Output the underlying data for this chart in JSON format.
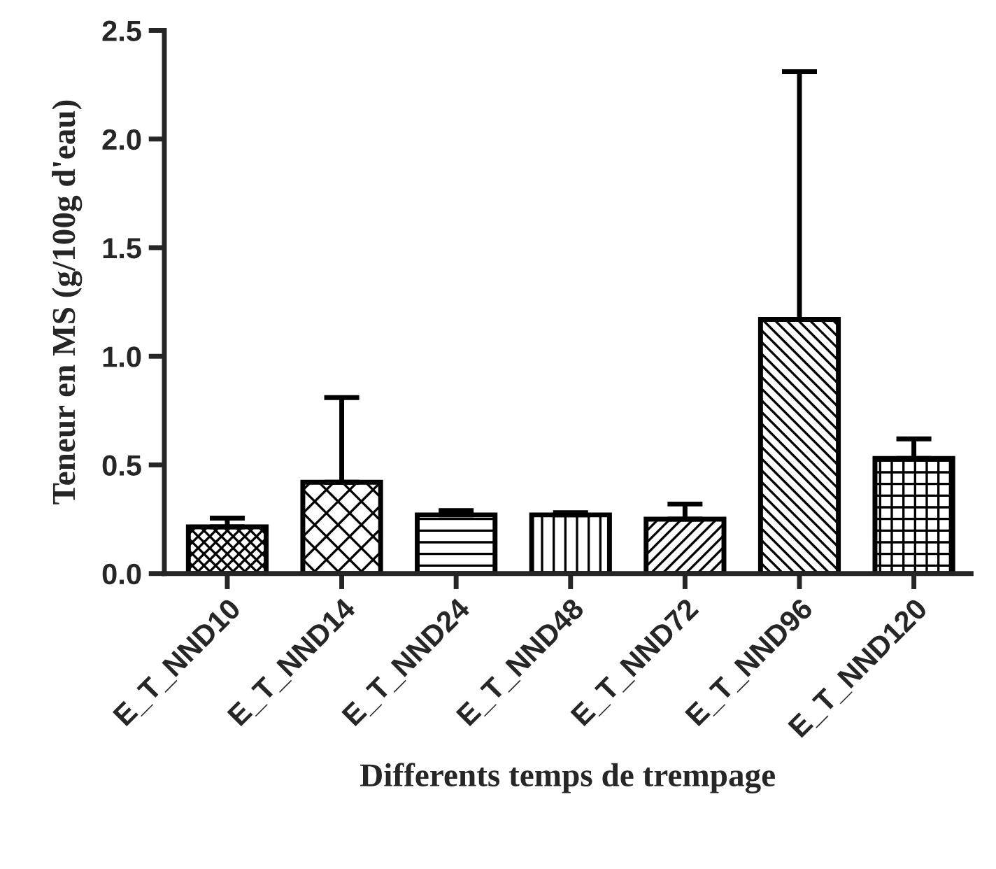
{
  "chart_data": {
    "type": "bar",
    "xlabel": "Differents temps de trempage",
    "ylabel": "Teneur en MS (g/100g d'eau)",
    "categories": [
      "E_T_NND10",
      "E_T_NND14",
      "E_T_NND24",
      "E_T_NND48",
      "E_T_NND72",
      "E_T_NND96",
      "E_T_NND120"
    ],
    "values": [
      0.215,
      0.42,
      0.27,
      0.27,
      0.25,
      1.17,
      0.53
    ],
    "errors": [
      [
        0.215,
        0.255
      ],
      [
        0.42,
        0.81
      ],
      [
        0.27,
        0.29
      ],
      [
        0.27,
        0.28
      ],
      [
        0.25,
        0.32
      ],
      [
        1.17,
        2.31
      ],
      [
        0.53,
        0.62
      ]
    ],
    "color": "#000000",
    "ylim": [
      0,
      2.5
    ],
    "yticks": [
      {
        "value": 0,
        "label": "0.0"
      },
      {
        "value": 0.5,
        "label": "0.5"
      },
      {
        "value": 1,
        "label": "1.0"
      },
      {
        "value": 1.5,
        "label": "1.5"
      },
      {
        "value": 2,
        "label": "2.0"
      },
      {
        "value": 2.5,
        "label": "2.5"
      }
    ],
    "grid": false
  }
}
